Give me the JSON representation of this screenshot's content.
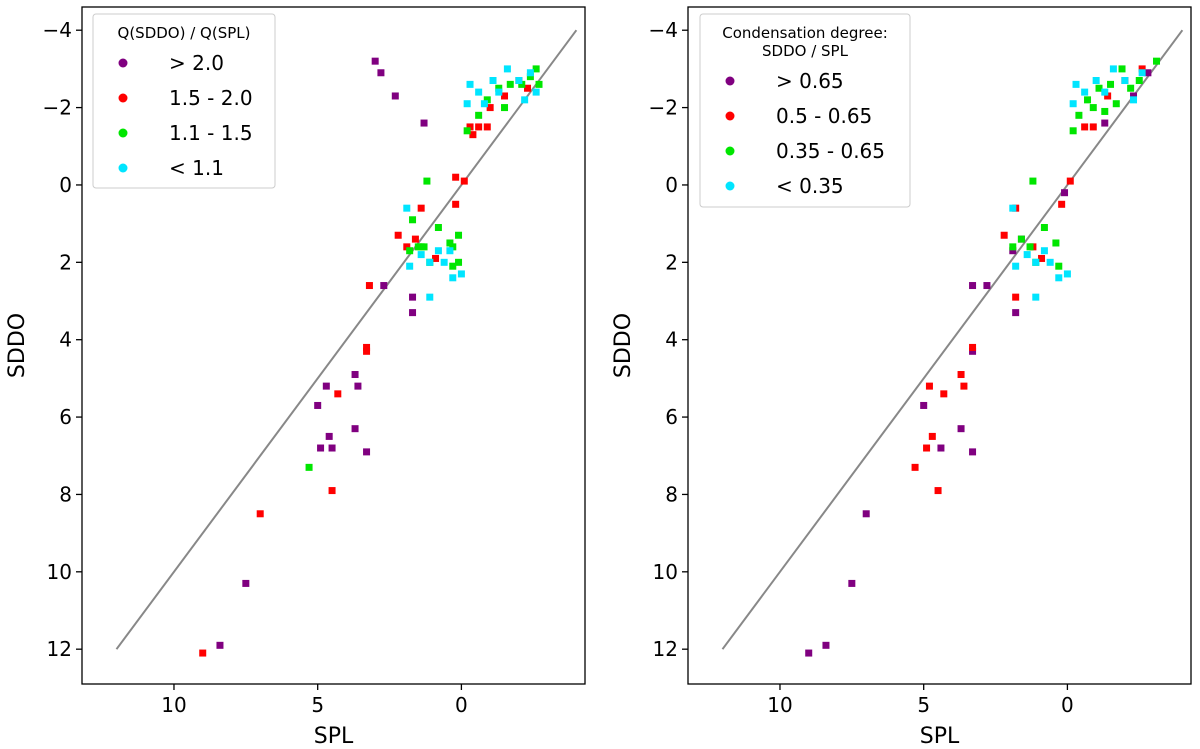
{
  "chart_data": [
    {
      "type": "scatter",
      "xlabel": "SPL",
      "ylabel": "SDDO",
      "xlim": [
        13.2,
        -4.3
      ],
      "ylim": [
        12.9,
        -4.6
      ],
      "x_ticks": [
        10,
        5,
        0
      ],
      "y_ticks": [
        -4,
        -2,
        0,
        2,
        4,
        6,
        8,
        10,
        12
      ],
      "x_tick_labels": [
        "10",
        "5",
        "0"
      ],
      "y_tick_labels": [
        "−4",
        "−2",
        "0",
        "2",
        "4",
        "6",
        "8",
        "10",
        "12"
      ],
      "identity_line": {
        "from": 12,
        "to": -4,
        "color": "#888888"
      },
      "legend": {
        "title": "Q(SDDO) / Q(SPL)",
        "location": "upper left",
        "entries": [
          {
            "label": "> 2.0",
            "color": "#800080"
          },
          {
            "label": "1.5 - 2.0",
            "color": "#ff0000"
          },
          {
            "label": "1.1 - 1.5",
            "color": "#00e600"
          },
          {
            "label": "< 1.1",
            "color": "#00e5ff"
          }
        ]
      },
      "series": [
        {
          "name": "> 2.0",
          "color": "#800080",
          "points": [
            [
              8.4,
              11.9
            ],
            [
              7.5,
              10.3
            ],
            [
              5.0,
              5.7
            ],
            [
              4.9,
              6.8
            ],
            [
              4.7,
              5.2
            ],
            [
              4.6,
              6.5
            ],
            [
              4.5,
              6.8
            ],
            [
              3.7,
              6.3
            ],
            [
              3.7,
              4.9
            ],
            [
              3.6,
              5.2
            ],
            [
              3.3,
              6.9
            ],
            [
              2.7,
              2.6
            ],
            [
              1.7,
              3.3
            ],
            [
              1.7,
              2.9
            ],
            [
              1.3,
              -1.6
            ],
            [
              2.3,
              -2.3
            ],
            [
              2.8,
              -2.9
            ],
            [
              3.0,
              -3.2
            ]
          ]
        },
        {
          "name": "1.5 - 2.0",
          "color": "#ff0000",
          "points": [
            [
              9.0,
              12.1
            ],
            [
              7.0,
              8.5
            ],
            [
              4.5,
              7.9
            ],
            [
              4.3,
              5.4
            ],
            [
              3.3,
              4.2
            ],
            [
              3.3,
              4.3
            ],
            [
              3.2,
              2.6
            ],
            [
              2.2,
              1.3
            ],
            [
              1.9,
              1.6
            ],
            [
              1.6,
              1.4
            ],
            [
              1.4,
              0.6
            ],
            [
              0.9,
              1.9
            ],
            [
              0.2,
              0.5
            ],
            [
              0.2,
              -0.2
            ],
            [
              -0.1,
              -0.1
            ],
            [
              -0.3,
              -1.5
            ],
            [
              -0.4,
              -1.3
            ],
            [
              -0.6,
              -1.5
            ],
            [
              -0.9,
              -1.5
            ],
            [
              -1.0,
              -2.0
            ],
            [
              -1.5,
              -2.3
            ],
            [
              -2.0,
              -2.7
            ],
            [
              -2.3,
              -2.5
            ]
          ]
        },
        {
          "name": "1.1 - 1.5",
          "color": "#00e600",
          "points": [
            [
              5.3,
              7.3
            ],
            [
              1.8,
              1.7
            ],
            [
              1.5,
              1.6
            ],
            [
              1.2,
              -0.1
            ],
            [
              1.4,
              1.6
            ],
            [
              1.3,
              1.6
            ],
            [
              1.7,
              0.9
            ],
            [
              1.1,
              2.0
            ],
            [
              0.8,
              1.1
            ],
            [
              0.4,
              1.5
            ],
            [
              0.3,
              1.6
            ],
            [
              0.3,
              2.1
            ],
            [
              0.1,
              2.0
            ],
            [
              0.1,
              1.3
            ],
            [
              -0.2,
              -1.4
            ],
            [
              -0.6,
              -1.8
            ],
            [
              -0.9,
              -2.2
            ],
            [
              -1.3,
              -2.5
            ],
            [
              -1.5,
              -2.0
            ],
            [
              -1.7,
              -2.6
            ],
            [
              -2.1,
              -2.6
            ],
            [
              -2.4,
              -2.8
            ],
            [
              -2.6,
              -3.0
            ],
            [
              -2.7,
              -2.6
            ]
          ]
        },
        {
          "name": "< 1.1",
          "color": "#00e5ff",
          "points": [
            [
              1.9,
              0.6
            ],
            [
              1.8,
              2.1
            ],
            [
              1.4,
              1.8
            ],
            [
              1.1,
              2.0
            ],
            [
              1.1,
              2.9
            ],
            [
              0.8,
              1.7
            ],
            [
              0.4,
              1.7
            ],
            [
              0.6,
              2.0
            ],
            [
              0.3,
              2.4
            ],
            [
              0.0,
              2.3
            ],
            [
              -0.2,
              -2.1
            ],
            [
              -0.3,
              -2.6
            ],
            [
              -0.6,
              -2.4
            ],
            [
              -0.8,
              -2.1
            ],
            [
              -1.1,
              -2.7
            ],
            [
              -1.3,
              -2.4
            ],
            [
              -1.6,
              -3.0
            ],
            [
              -2.0,
              -2.7
            ],
            [
              -2.2,
              -2.2
            ],
            [
              -2.4,
              -2.9
            ],
            [
              -2.6,
              -2.4
            ]
          ]
        }
      ]
    },
    {
      "type": "scatter",
      "xlabel": "SPL",
      "ylabel": "SDDO",
      "xlim": [
        13.2,
        -4.3
      ],
      "ylim": [
        12.9,
        -4.6
      ],
      "x_ticks": [
        10,
        5,
        0
      ],
      "y_ticks": [
        -4,
        -2,
        0,
        2,
        4,
        6,
        8,
        10,
        12
      ],
      "x_tick_labels": [
        "10",
        "5",
        "0"
      ],
      "y_tick_labels": [
        "−4",
        "−2",
        "0",
        "2",
        "4",
        "6",
        "8",
        "10",
        "12"
      ],
      "identity_line": {
        "from": 12,
        "to": -4,
        "color": "#888888"
      },
      "legend": {
        "title": "Condensation degree:\nSDDO / SPL",
        "location": "upper left",
        "entries": [
          {
            "label": "> 0.65",
            "color": "#800080"
          },
          {
            "label": "0.5 - 0.65",
            "color": "#ff0000"
          },
          {
            "label": "0.35 - 0.65",
            "color": "#00e600"
          },
          {
            "label": "< 0.35",
            "color": "#00e5ff"
          }
        ]
      },
      "series": [
        {
          "name": "> 0.65",
          "color": "#800080",
          "points": [
            [
              9.0,
              12.1
            ],
            [
              8.4,
              11.9
            ],
            [
              7.5,
              10.3
            ],
            [
              7.0,
              8.5
            ],
            [
              5.0,
              5.7
            ],
            [
              4.4,
              6.8
            ],
            [
              3.7,
              6.3
            ],
            [
              3.3,
              6.9
            ],
            [
              3.3,
              4.3
            ],
            [
              3.3,
              2.6
            ],
            [
              2.8,
              2.6
            ],
            [
              1.8,
              3.3
            ],
            [
              1.9,
              1.7
            ],
            [
              1.6,
              1.4
            ],
            [
              0.1,
              0.2
            ],
            [
              -1.3,
              -1.6
            ],
            [
              -2.3,
              -2.3
            ],
            [
              -2.8,
              -2.9
            ]
          ]
        },
        {
          "name": "0.5 - 0.65",
          "color": "#ff0000",
          "points": [
            [
              5.3,
              7.3
            ],
            [
              4.9,
              6.8
            ],
            [
              4.7,
              6.5
            ],
            [
              4.8,
              5.2
            ],
            [
              4.5,
              7.9
            ],
            [
              4.3,
              5.4
            ],
            [
              3.7,
              4.9
            ],
            [
              3.6,
              5.2
            ],
            [
              3.3,
              4.2
            ],
            [
              2.2,
              1.3
            ],
            [
              1.8,
              2.9
            ],
            [
              1.8,
              0.6
            ],
            [
              1.2,
              1.6
            ],
            [
              0.9,
              1.9
            ],
            [
              0.2,
              0.5
            ],
            [
              -0.1,
              -0.1
            ],
            [
              -0.6,
              -1.5
            ],
            [
              -0.9,
              -1.5
            ],
            [
              -1.4,
              -2.3
            ],
            [
              -2.0,
              -2.7
            ],
            [
              -2.6,
              -3.0
            ]
          ]
        },
        {
          "name": "0.35 - 0.65",
          "color": "#00e600",
          "points": [
            [
              1.9,
              1.6
            ],
            [
              1.6,
              1.4
            ],
            [
              1.2,
              -0.1
            ],
            [
              1.3,
              1.6
            ],
            [
              1.1,
              2.0
            ],
            [
              0.8,
              1.1
            ],
            [
              0.4,
              1.5
            ],
            [
              0.3,
              2.1
            ],
            [
              -0.2,
              -1.4
            ],
            [
              -0.4,
              -1.8
            ],
            [
              -0.7,
              -2.2
            ],
            [
              -1.1,
              -2.5
            ],
            [
              -1.3,
              -1.9
            ],
            [
              -1.5,
              -2.6
            ],
            [
              -1.9,
              -3.0
            ],
            [
              -2.2,
              -2.5
            ],
            [
              -2.5,
              -2.7
            ],
            [
              -3.1,
              -3.2
            ],
            [
              -1.7,
              -2.1
            ],
            [
              -0.9,
              -2.0
            ]
          ]
        },
        {
          "name": "< 0.35",
          "color": "#00e5ff",
          "points": [
            [
              1.9,
              0.6
            ],
            [
              1.8,
              2.1
            ],
            [
              1.4,
              1.8
            ],
            [
              1.1,
              2.0
            ],
            [
              1.1,
              2.9
            ],
            [
              0.8,
              1.7
            ],
            [
              0.6,
              2.0
            ],
            [
              0.3,
              2.4
            ],
            [
              0.0,
              2.3
            ],
            [
              -0.2,
              -2.1
            ],
            [
              -0.3,
              -2.6
            ],
            [
              -0.6,
              -2.4
            ],
            [
              -1.0,
              -2.7
            ],
            [
              -1.3,
              -2.4
            ],
            [
              -1.6,
              -3.0
            ],
            [
              -2.0,
              -2.7
            ],
            [
              -2.3,
              -2.2
            ],
            [
              -2.6,
              -2.9
            ]
          ]
        }
      ]
    }
  ]
}
